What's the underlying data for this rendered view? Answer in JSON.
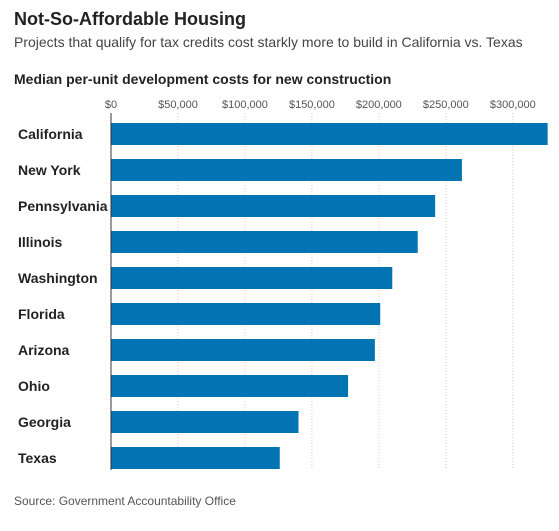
{
  "header": {
    "title": "Not-So-Affordable Housing",
    "subtitle": "Projects that qualify for tax credits cost starkly more to build in California vs. Texas"
  },
  "chart_data": {
    "type": "bar",
    "orientation": "horizontal",
    "title": "Median per-unit development costs for new construction",
    "categories": [
      "California",
      "New York",
      "Pennsylvania",
      "Illinois",
      "Washington",
      "Florida",
      "Arizona",
      "Ohio",
      "Georgia",
      "Texas"
    ],
    "values": [
      326000,
      262000,
      242000,
      229000,
      210000,
      201000,
      197000,
      177000,
      140000,
      126000
    ],
    "xlim": [
      0,
      330000
    ],
    "xticks": [
      0,
      50000,
      100000,
      150000,
      200000,
      250000,
      300000
    ],
    "xtick_labels": [
      "$0",
      "$50,000",
      "$100,000",
      "$150,000",
      "$200,000",
      "$250,000",
      "$300,000"
    ],
    "grid": true,
    "bar_color": "#0274b2",
    "grid_color": "#cccccc"
  },
  "footer": {
    "source": "Source: Government Accountability Office"
  }
}
